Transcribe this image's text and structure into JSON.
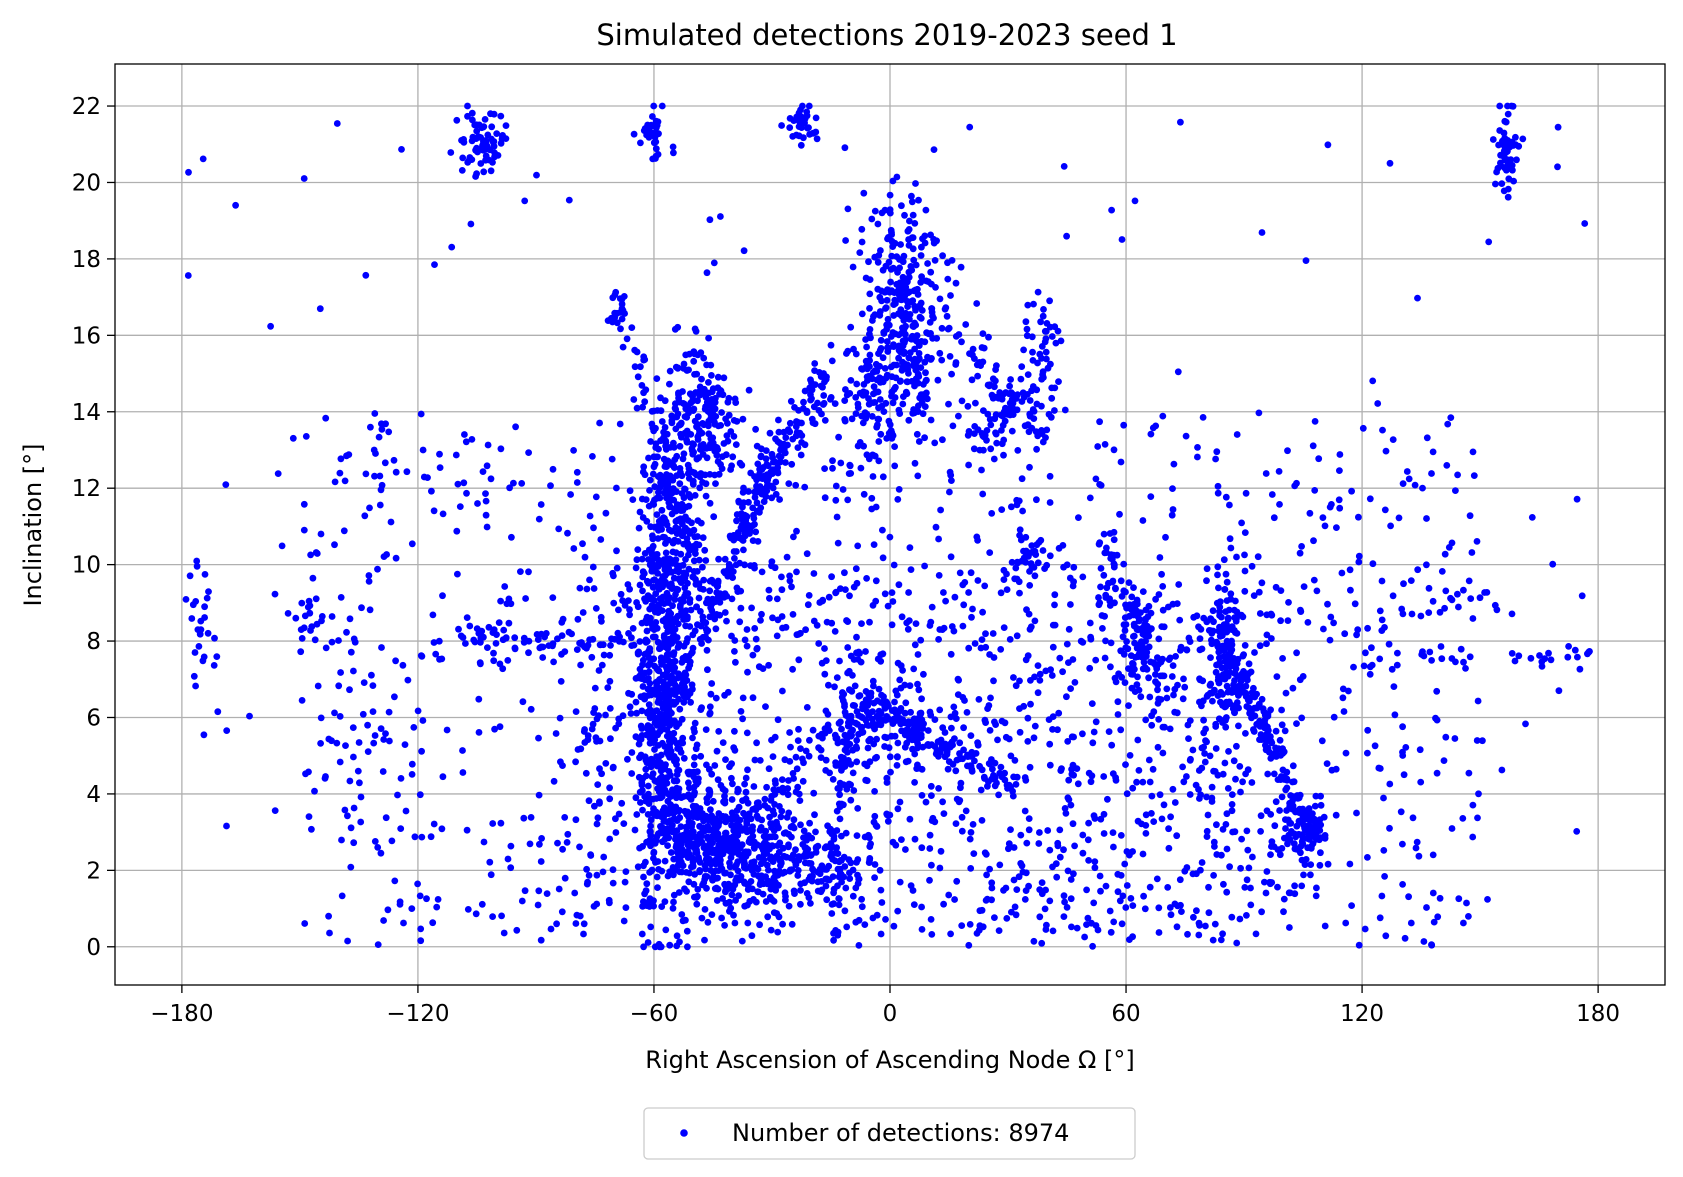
{
  "chart_data": {
    "type": "scatter",
    "title": "Simulated detections  2019-2023 seed 1",
    "xlabel": "Right Ascension of Ascending Node Ω [°]",
    "ylabel": "Inclination [°]",
    "xlim": [
      -197,
      197
    ],
    "ylim": [
      -1,
      23.1
    ],
    "xticks": [
      -180,
      -120,
      -60,
      0,
      60,
      120,
      180
    ],
    "xtick_labels": [
      "−180",
      "−120",
      "−60",
      "0",
      "60",
      "120",
      "180"
    ],
    "yticks": [
      0,
      2,
      4,
      6,
      8,
      10,
      12,
      14,
      16,
      18,
      20,
      22
    ],
    "ytick_labels": [
      "0",
      "2",
      "4",
      "6",
      "8",
      "10",
      "12",
      "14",
      "16",
      "18",
      "20",
      "22"
    ],
    "grid": true,
    "legend": {
      "placement": "below-center",
      "entries": [
        "Number of detections: 8974"
      ]
    },
    "marker_color": "#0000ff",
    "series": [
      {
        "name": "Number of detections: 8974",
        "count": 8974,
        "clusters": [
          {
            "x": -58,
            "y": 5.0,
            "sx": 3.5,
            "sy": 2.2,
            "n": 320
          },
          {
            "x": -58,
            "y": 8.5,
            "sx": 3.5,
            "sy": 1.8,
            "n": 230
          },
          {
            "x": -55,
            "y": 11.5,
            "sx": 3.5,
            "sy": 1.8,
            "n": 190
          },
          {
            "x": -48,
            "y": 13.8,
            "sx": 4.0,
            "sy": 0.9,
            "n": 160
          },
          {
            "x": -38,
            "y": 2.5,
            "sx": 8.0,
            "sy": 0.7,
            "n": 260
          },
          {
            "x": -22,
            "y": 2.0,
            "sx": 7.0,
            "sy": 0.5,
            "n": 120
          },
          {
            "x": -50,
            "y": 3.3,
            "sx": 5.0,
            "sy": 0.8,
            "n": 130
          },
          {
            "x": 4,
            "y": 16.5,
            "sx": 6.0,
            "sy": 1.5,
            "n": 260
          },
          {
            "x": -5,
            "y": 14.5,
            "sx": 4.0,
            "sy": 1.0,
            "n": 100
          },
          {
            "x": 28,
            "y": 14.0,
            "sx": 4.0,
            "sy": 0.6,
            "n": 70
          },
          {
            "x": 38,
            "y": 15.5,
            "sx": 2.5,
            "sy": 0.8,
            "n": 50
          },
          {
            "x": 0,
            "y": 5.8,
            "sx": 6.0,
            "sy": 0.6,
            "n": 110
          },
          {
            "x": 62,
            "y": 8.0,
            "sx": 3.0,
            "sy": 0.7,
            "n": 80
          },
          {
            "x": 85,
            "y": 7.5,
            "sx": 3.0,
            "sy": 1.2,
            "n": 140
          },
          {
            "x": 105,
            "y": 3.2,
            "sx": 3.0,
            "sy": 0.5,
            "n": 60
          },
          {
            "x": 35,
            "y": 10.3,
            "sx": 2.0,
            "sy": 0.4,
            "n": 30
          },
          {
            "x": 55,
            "y": 10.0,
            "sx": 2.0,
            "sy": 0.6,
            "n": 30
          },
          {
            "x": -104,
            "y": 21.1,
            "sx": 3.0,
            "sy": 0.5,
            "n": 70
          },
          {
            "x": -60,
            "y": 21.3,
            "sx": 1.5,
            "sy": 0.4,
            "n": 30
          },
          {
            "x": -22,
            "y": 21.6,
            "sx": 2.0,
            "sy": 0.3,
            "n": 35
          },
          {
            "x": 157,
            "y": 20.9,
            "sx": 1.5,
            "sy": 0.6,
            "n": 55
          },
          {
            "x": -176,
            "y": 8.2,
            "sx": 2.0,
            "sy": 0.8,
            "n": 25
          }
        ],
        "paths": [
          {
            "from": [
              -58,
              6
            ],
            "to": [
              -28,
              13
            ],
            "spread": 0.7,
            "n": 170
          },
          {
            "from": [
              -38,
              11
            ],
            "to": [
              -15,
              15
            ],
            "spread": 0.8,
            "n": 110
          },
          {
            "from": [
              -46,
              9
            ],
            "to": [
              -70,
              17
            ],
            "spread": 0.6,
            "n": 100
          },
          {
            "from": [
              -3,
              6.5
            ],
            "to": [
              -50,
              2.2
            ],
            "spread": 0.6,
            "n": 110
          },
          {
            "from": [
              0,
              6
            ],
            "to": [
              32,
              4.2
            ],
            "spread": 0.4,
            "n": 90
          },
          {
            "from": [
              -8,
              8
            ],
            "to": [
              -15,
              2
            ],
            "spread": 0.6,
            "n": 60
          },
          {
            "from": [
              85,
              8
            ],
            "to": [
              108,
              2.8
            ],
            "spread": 0.5,
            "n": 150
          },
          {
            "from": [
              60,
              9
            ],
            "to": [
              72,
              6.5
            ],
            "spread": 0.5,
            "n": 40
          },
          {
            "from": [
              -110,
              8.1
            ],
            "to": [
              -64,
              7.8
            ],
            "spread": 0.3,
            "n": 60
          },
          {
            "from": [
              120,
              7.6
            ],
            "to": [
              178,
              7.6
            ],
            "spread": 0.3,
            "n": 35
          },
          {
            "from": [
              140,
              9.2
            ],
            "to": [
              160,
              9.0
            ],
            "spread": 0.3,
            "n": 12
          },
          {
            "from": [
              -155,
              9.0
            ],
            "to": [
              -135,
              8.0
            ],
            "spread": 0.6,
            "n": 20
          },
          {
            "from": [
              0,
              19
            ],
            "to": [
              8,
              14
            ],
            "spread": 0.8,
            "n": 60
          },
          {
            "from": [
              15,
              16
            ],
            "to": [
              40,
              13.5
            ],
            "spread": 0.7,
            "n": 40
          }
        ],
        "background": [
          {
            "xrange": [
              -150,
              150
            ],
            "yrange": [
              0,
              14
            ],
            "n": 1100
          },
          {
            "xrange": [
              -180,
              180
            ],
            "yrange": [
              0,
              22
            ],
            "n": 180
          },
          {
            "xrange": [
              -90,
              110
            ],
            "yrange": [
              0.3,
              3.5
            ],
            "n": 350
          },
          {
            "xrange": [
              -80,
              100
            ],
            "yrange": [
              3.5,
              10
            ],
            "n": 500
          }
        ]
      }
    ]
  }
}
